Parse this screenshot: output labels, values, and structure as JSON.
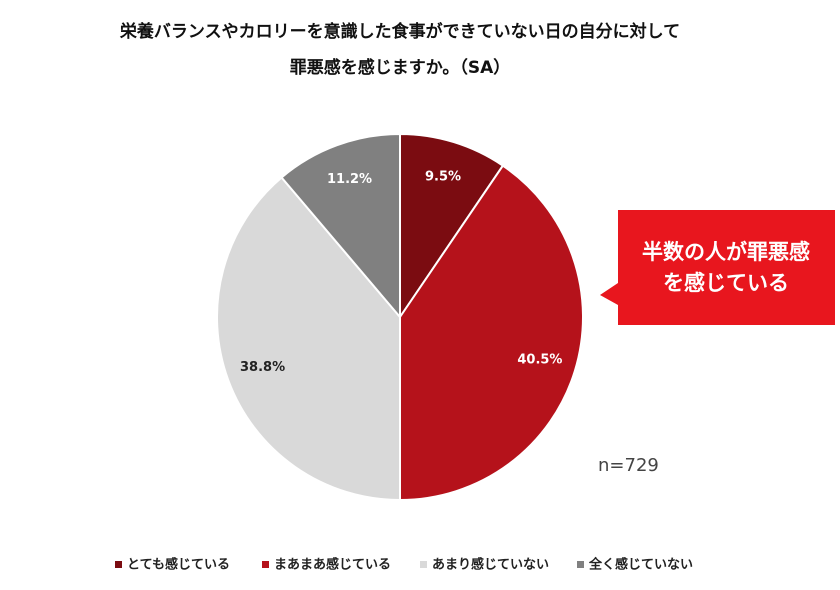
{
  "chart_data": {
    "type": "pie",
    "title": [
      "栄養バランスやカロリーを意識した食事ができていない日の自分に対して",
      "罪悪感を感じますか。（SA）"
    ],
    "categories": [
      "とても感じている",
      "まあまあ感じている",
      "あまり感じていない",
      "全く感じていない"
    ],
    "values": [
      9.5,
      40.5,
      38.8,
      11.2
    ],
    "value_labels": [
      "9.5%",
      "40.5%",
      "38.8%",
      "11.2%"
    ],
    "colors": [
      "#7b0c11",
      "#b5121b",
      "#d9d9d9",
      "#808080"
    ],
    "annotations": {
      "callout": [
        "半数の人が罪悪感",
        "を感じている"
      ],
      "sample": "n=729"
    },
    "legend": "bottom"
  }
}
